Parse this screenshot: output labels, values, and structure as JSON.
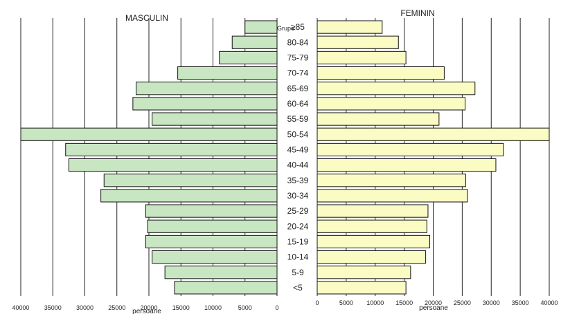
{
  "chart_data": {
    "type": "bar",
    "orientation": "horizontal-pyramid",
    "age_groups_header": "Grupe",
    "categories": [
      "<5",
      "5-9",
      "10-14",
      "15-19",
      "20-24",
      "25-29",
      "30-34",
      "35-39",
      "40-44",
      "45-49",
      "50-54",
      "55-59",
      "60-64",
      "65-69",
      "70-74",
      "75-79",
      "80-84",
      "≥85"
    ],
    "series": [
      {
        "name": "MASCULIN",
        "values": [
          16000,
          17500,
          19500,
          20500,
          20200,
          20500,
          27500,
          27000,
          32500,
          33000,
          40000,
          19500,
          22500,
          22000,
          15500,
          9000,
          7000,
          5000
        ]
      },
      {
        "name": "FEMININ",
        "values": [
          15300,
          16100,
          18700,
          19400,
          18900,
          19100,
          25900,
          25600,
          30800,
          32100,
          40000,
          21000,
          25500,
          27200,
          21900,
          15300,
          14000,
          11200
        ]
      }
    ],
    "left_axis": {
      "ticks": [
        40000,
        35000,
        30000,
        25000,
        20000,
        15000,
        10000,
        5000,
        0
      ],
      "xlim": [
        0,
        40000
      ],
      "xlabel": "persoane"
    },
    "right_axis": {
      "ticks": [
        0,
        5000,
        10000,
        15000,
        20000,
        25000,
        30000,
        35000,
        40000
      ],
      "xlim": [
        0,
        40000
      ],
      "xlabel": "persoane"
    },
    "grid": true,
    "colors": {
      "male": "#c9e6c3",
      "female": "#fbfbc4",
      "stroke": "#111111",
      "grid": "#222222"
    }
  }
}
